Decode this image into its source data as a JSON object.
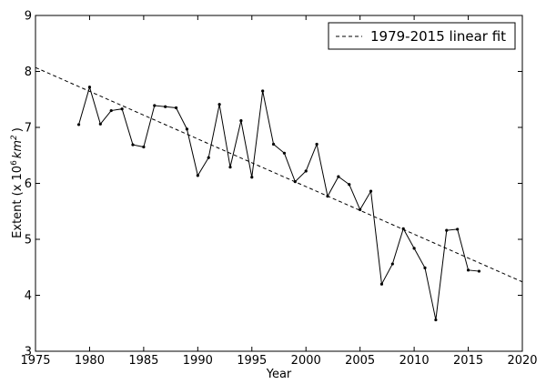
{
  "chart_data": {
    "type": "line",
    "xlabel": "Year",
    "ylabel_prefix": "Extent (x 10",
    "ylabel_exp": "6",
    "ylabel_unit": "km",
    "ylabel_unit_exp": "2",
    "ylabel_suffix": ")",
    "xlim": [
      1975,
      2020
    ],
    "ylim": [
      3,
      9
    ],
    "xticks": [
      1975,
      1980,
      1985,
      1990,
      1995,
      2000,
      2005,
      2010,
      2015,
      2020
    ],
    "yticks": [
      3,
      4,
      5,
      6,
      7,
      8,
      9
    ],
    "grid": false,
    "legend_position": "top-right",
    "series": [
      {
        "style": "solid-with-markers",
        "color": "#000000",
        "x": [
          1979,
          1980,
          1981,
          1982,
          1983,
          1984,
          1985,
          1986,
          1987,
          1988,
          1989,
          1990,
          1991,
          1992,
          1993,
          1994,
          1995,
          1996,
          1997,
          1998,
          1999,
          2000,
          2001,
          2002,
          2003,
          2004,
          2005,
          2006,
          2007,
          2008,
          2009,
          2010,
          2011,
          2012,
          2013,
          2014,
          2015,
          2016
        ],
        "y": [
          7.05,
          7.72,
          7.06,
          7.3,
          7.33,
          6.69,
          6.65,
          7.39,
          7.37,
          7.35,
          6.97,
          6.14,
          6.46,
          7.41,
          6.29,
          7.12,
          6.11,
          7.65,
          6.7,
          6.54,
          6.03,
          6.22,
          6.7,
          5.77,
          6.12,
          5.98,
          5.53,
          5.86,
          4.2,
          4.56,
          5.19,
          4.84,
          4.49,
          3.56,
          5.16,
          5.18,
          4.45,
          4.43
        ]
      },
      {
        "name": "1979-2015 linear fit",
        "style": "dashed",
        "color": "#000000",
        "x": [
          1975,
          2020
        ],
        "y": [
          8.07,
          4.24
        ]
      }
    ]
  }
}
